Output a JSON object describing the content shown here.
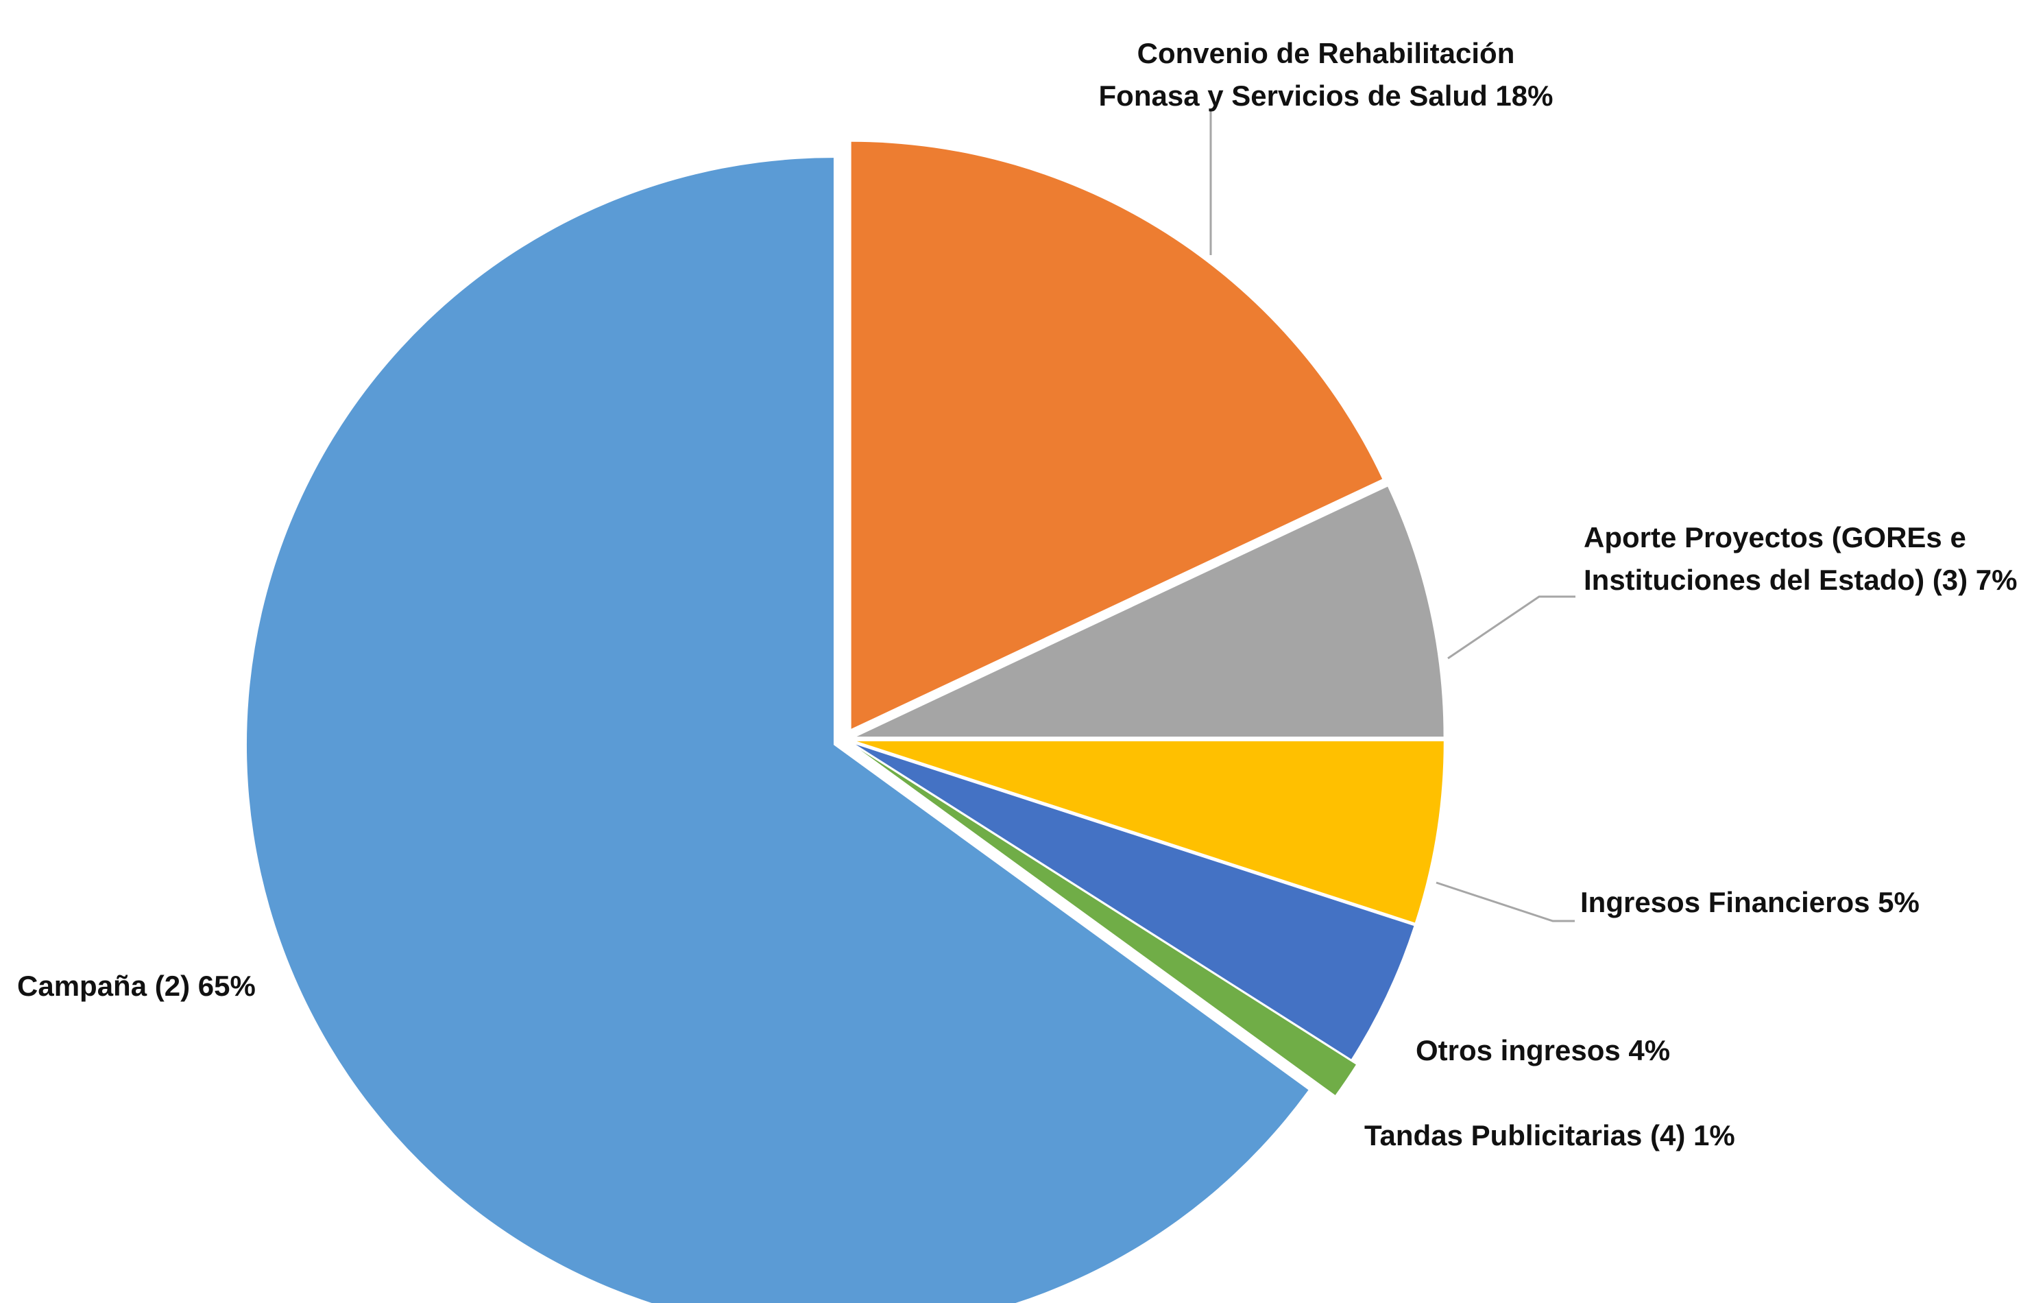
{
  "chart_data": {
    "type": "pie",
    "title": "",
    "series": [
      {
        "values": [
          18,
          7,
          5,
          4,
          1,
          65
        ]
      }
    ],
    "slices": [
      {
        "label_lines": [
          "Convenio de Rehabilitación",
          "Fonasa y Servicios de Salud  18%"
        ],
        "value": 18,
        "color": "#ED7D31"
      },
      {
        "label_lines": [
          "Aporte Proyectos (GOREs e",
          "Instituciones del Estado) (3) 7%"
        ],
        "value": 7,
        "color": "#A5A5A5"
      },
      {
        "label_lines": [
          "Ingresos Financieros  5%"
        ],
        "value": 5,
        "color": "#FFC000"
      },
      {
        "label_lines": [
          "Otros ingresos  4%"
        ],
        "value": 4,
        "color": "#4472C4"
      },
      {
        "label_lines": [
          "Tandas Publicitarias (4)  1%"
        ],
        "value": 1,
        "color": "#70AD47"
      },
      {
        "label_lines": [
          "Campaña (2) 65%"
        ],
        "value": 65,
        "color": "#5B9BD5"
      }
    ],
    "start_angle_deg": 0,
    "direction": "clockwise",
    "exploded": true,
    "legend": "none"
  }
}
